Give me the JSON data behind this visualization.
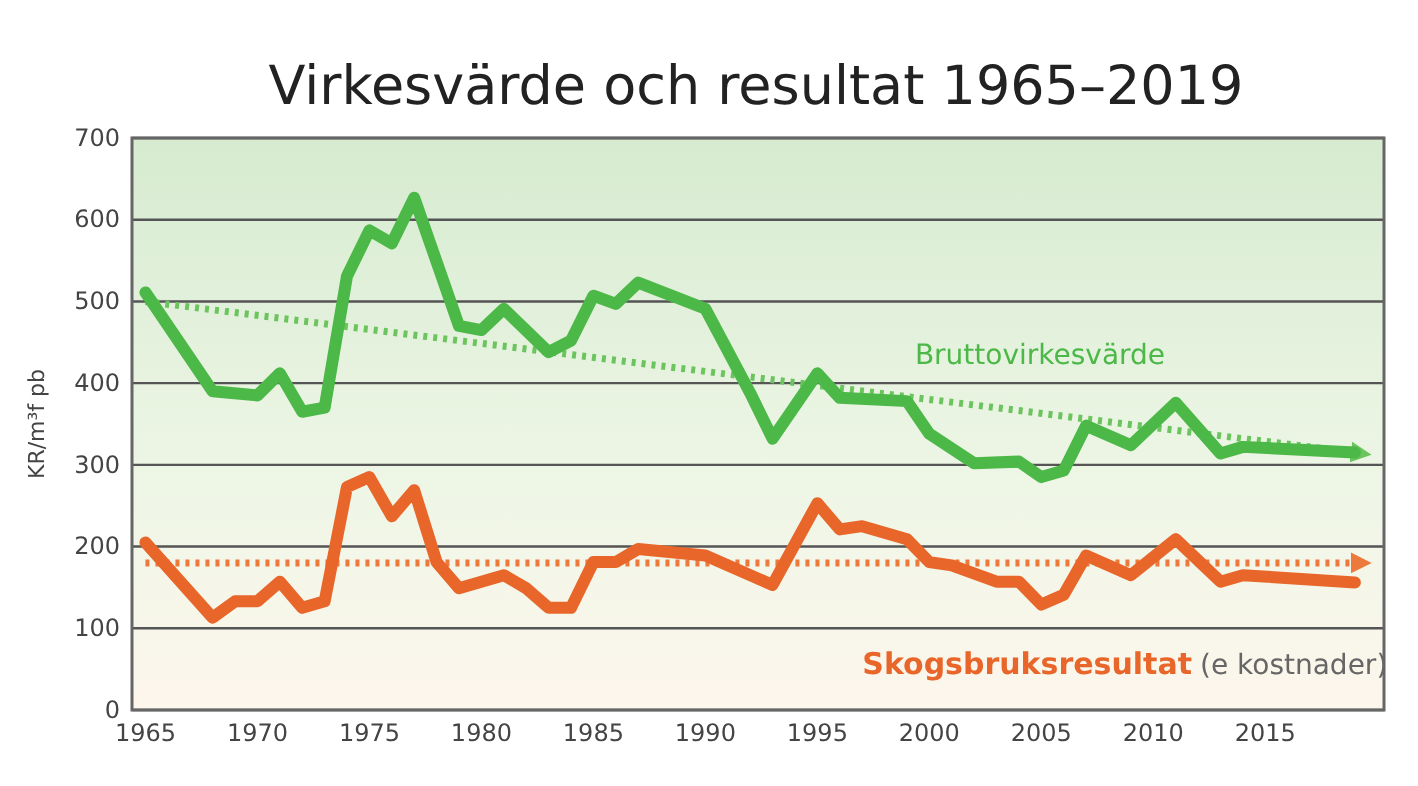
{
  "chart_data": {
    "type": "line",
    "title": "Virkesvärde och resultat 1965–2019",
    "ylabel": "KR/m³f pb",
    "xlim": [
      1964.4,
      2020.3
    ],
    "xticks": [
      1965,
      1970,
      1975,
      1980,
      1985,
      1990,
      1995,
      2000,
      2005,
      2010,
      2015
    ],
    "ylim": [
      0,
      700
    ],
    "yticks": [
      0,
      100,
      200,
      300,
      400,
      500,
      600,
      700
    ],
    "grid": "y",
    "annotations": [
      "(e kostnader)"
    ],
    "series": [
      {
        "name": "Bruttovirkesvärde",
        "color": "#4cb848",
        "x": [
          1965,
          1968,
          1970,
          1971,
          1972,
          1973,
          1974,
          1975,
          1976,
          1977,
          1979,
          1980,
          1981,
          1983,
          1984,
          1985,
          1986,
          1987,
          1990,
          1992,
          1993,
          1995,
          1996,
          1999,
          2000,
          2002,
          2004,
          2005,
          2006,
          2007,
          2009,
          2011,
          2013,
          2014,
          2019
        ],
        "values": [
          511,
          390,
          385,
          412,
          365,
          370,
          531,
          587,
          571,
          627,
          470,
          465,
          491,
          438,
          452,
          507,
          497,
          523,
          491,
          388,
          332,
          412,
          382,
          378,
          338,
          302,
          304,
          285,
          293,
          348,
          324,
          376,
          314,
          322,
          315
        ]
      },
      {
        "name": "Skogsbruksresultat",
        "color": "#e8662a",
        "x": [
          1965,
          1968,
          1969,
          1970,
          1971,
          1972,
          1973,
          1974,
          1975,
          1976,
          1977,
          1978,
          1979,
          1981,
          1982,
          1983,
          1984,
          1985,
          1986,
          1987,
          1990,
          1993,
          1995,
          1996,
          1997,
          1999,
          2000,
          2001,
          2003,
          2004,
          2005,
          2006,
          2007,
          2009,
          2011,
          2013,
          2014,
          2019
        ],
        "values": [
          205,
          113,
          133,
          133,
          157,
          125,
          133,
          273,
          285,
          237,
          269,
          181,
          149,
          165,
          149,
          125,
          125,
          181,
          181,
          197,
          189,
          153,
          253,
          221,
          225,
          209,
          181,
          177,
          157,
          157,
          129,
          141,
          189,
          165,
          209,
          157,
          165,
          156
        ]
      },
      {
        "type": "line",
        "line_style": "dotted",
        "color": "#6cc45e",
        "x": [
          1965,
          2019
        ],
        "values": [
          500,
          315
        ]
      },
      {
        "type": "line",
        "line_style": "dotted",
        "color": "#ec7a3c",
        "x": [
          1965,
          2019
        ],
        "values": [
          180,
          180
        ]
      }
    ]
  }
}
